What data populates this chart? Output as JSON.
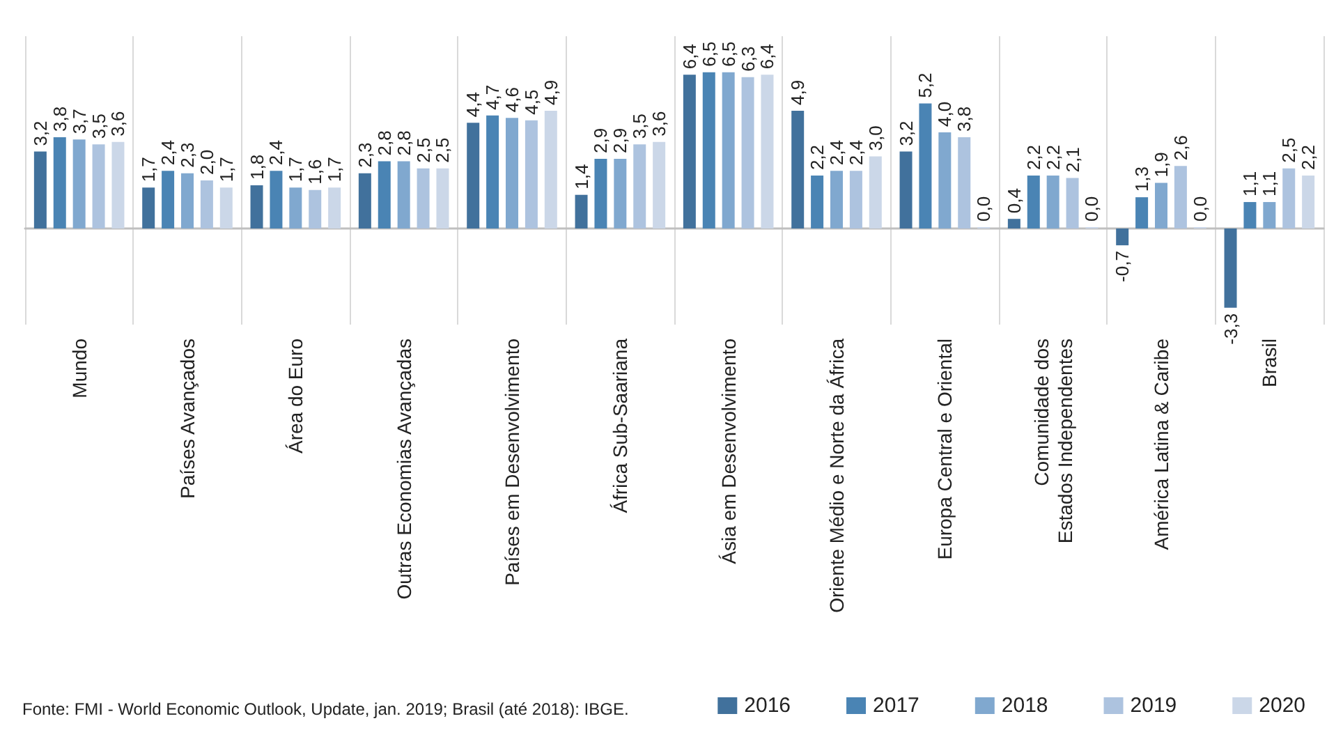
{
  "chart_data": {
    "type": "bar",
    "categories": [
      "Mundo",
      "Países Avançados",
      "Área do Euro",
      "Outras Economias Avançadas",
      "Países em Desenvolvimento",
      "África Sub-Saariana",
      "Ásia em Desenvolvimento",
      "Oriente Médio e Norte da África",
      "Europa Central e Oriental",
      "Comunidade dos\nEstados Independentes",
      "América Latina & Caribe",
      "Brasil"
    ],
    "series": [
      {
        "name": "2016",
        "color": "#41719c",
        "values": [
          3.2,
          1.7,
          1.8,
          2.3,
          4.4,
          1.4,
          6.4,
          4.9,
          3.2,
          0.4,
          -0.7,
          -3.3
        ],
        "value_labels": [
          "3,2",
          "1,7",
          "1,8",
          "2,3",
          "4,4",
          "1,4",
          "6,4",
          "4,9",
          "3,2",
          "0,4",
          "-0,7",
          "-3,3"
        ]
      },
      {
        "name": "2017",
        "color": "#4a84b4",
        "values": [
          3.8,
          2.4,
          2.4,
          2.8,
          4.7,
          2.9,
          6.5,
          2.2,
          5.2,
          2.2,
          1.3,
          1.1
        ],
        "value_labels": [
          "3,8",
          "2,4",
          "2,4",
          "2,8",
          "4,7",
          "2,9",
          "6,5",
          "2,2",
          "5,2",
          "2,2",
          "1,3",
          "1,1"
        ]
      },
      {
        "name": "2018",
        "color": "#80a8cf",
        "values": [
          3.7,
          2.3,
          1.7,
          2.8,
          4.6,
          2.9,
          6.5,
          2.4,
          4.0,
          2.2,
          1.9,
          1.1
        ],
        "value_labels": [
          "3,7",
          "2,3",
          "1,7",
          "2,8",
          "4,6",
          "2,9",
          "6,5",
          "2,4",
          "4,0",
          "2,2",
          "1,9",
          "1,1"
        ]
      },
      {
        "name": "2019",
        "color": "#adc3df",
        "values": [
          3.5,
          2.0,
          1.6,
          2.5,
          4.5,
          3.5,
          6.3,
          2.4,
          3.8,
          2.1,
          2.6,
          2.5
        ],
        "value_labels": [
          "3,5",
          "2,0",
          "1,6",
          "2,5",
          "4,5",
          "3,5",
          "6,3",
          "2,4",
          "3,8",
          "2,1",
          "2,6",
          "2,5"
        ]
      },
      {
        "name": "2020",
        "color": "#cbd7e8",
        "values": [
          3.6,
          1.7,
          1.7,
          2.5,
          4.9,
          3.6,
          6.4,
          3.0,
          0.0,
          0.0,
          0.0,
          2.2
        ],
        "value_labels": [
          "3,6",
          "1,7",
          "1,7",
          "2,5",
          "4,9",
          "3,6",
          "6,4",
          "3,0",
          "0,0",
          "0,0",
          "0,0",
          "2,2"
        ]
      }
    ],
    "grid": "x",
    "legend": "bottom right",
    "annotations": [
      "Fonte: FMI - World Economic Outlook, Update, jan. 2019; Brasil (até 2018): IBGE."
    ]
  }
}
